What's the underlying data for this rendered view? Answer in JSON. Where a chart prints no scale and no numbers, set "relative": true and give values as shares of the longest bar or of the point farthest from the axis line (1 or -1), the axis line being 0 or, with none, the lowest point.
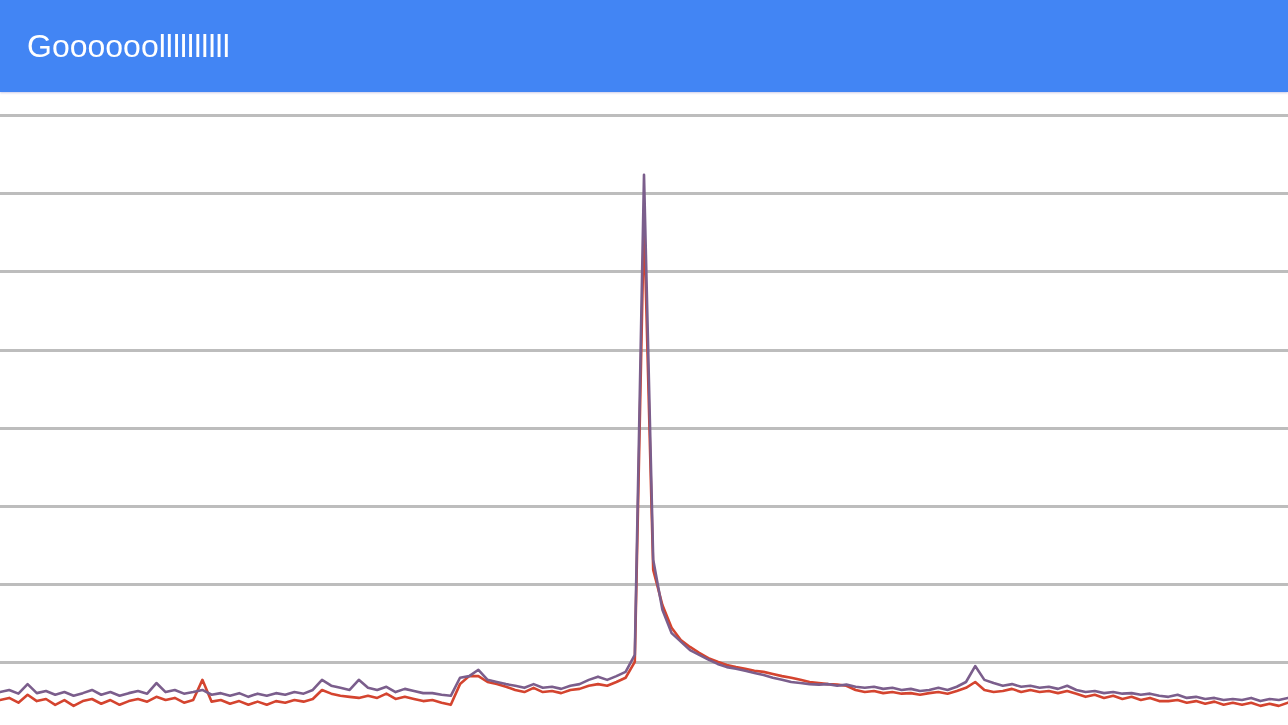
{
  "chart_data": {
    "type": "line",
    "title": "Goooooollllllllll",
    "relative": true,
    "grid": "y",
    "marker": "none",
    "line_style": "solid",
    "categories": [
      null,
      null,
      null,
      null,
      null,
      null,
      null,
      null,
      null,
      null,
      null,
      null,
      null,
      null,
      null,
      null,
      null,
      null,
      null,
      null,
      null,
      null,
      null,
      null,
      null,
      null,
      null,
      null,
      null,
      null,
      null,
      null,
      null,
      null,
      null,
      null,
      null,
      null,
      null,
      null,
      null,
      null,
      null,
      null,
      null,
      null,
      null,
      null,
      null,
      null,
      null,
      null,
      null,
      null,
      null,
      null,
      null,
      null,
      null,
      null,
      null,
      null,
      null,
      null,
      null,
      null,
      null,
      null,
      null,
      null,
      null,
      null,
      null,
      null,
      null,
      null,
      null,
      null,
      null,
      null,
      null,
      null,
      null,
      null,
      null,
      null,
      null,
      null,
      null,
      null,
      null,
      null,
      null,
      null,
      null,
      null,
      null,
      null,
      null,
      null,
      null,
      null,
      null,
      null,
      null,
      null,
      null,
      null,
      null,
      null,
      null,
      null,
      null,
      null,
      null,
      null,
      null,
      null,
      null,
      null,
      null,
      null,
      null,
      null,
      null,
      null,
      null,
      null,
      null,
      null,
      null,
      null,
      null,
      null,
      null,
      null,
      null,
      null,
      null,
      null,
      null
    ],
    "series": [
      {
        "color": "#d4442f",
        "values": [
          0.011,
          0.015,
          0.006,
          0.021,
          0.009,
          0.013,
          0.002,
          0.011,
          0,
          0.009,
          0.013,
          0.004,
          0.011,
          0.002,
          0.009,
          0.013,
          0.008,
          0.017,
          0.011,
          0.015,
          0.006,
          0.011,
          0.049,
          0.008,
          0.011,
          0.004,
          0.009,
          0.002,
          0.008,
          0.002,
          0.009,
          0.006,
          0.011,
          0.008,
          0.013,
          0.03,
          0.023,
          0.019,
          0.017,
          0.015,
          0.019,
          0.015,
          0.023,
          0.013,
          0.017,
          0.013,
          0.009,
          0.011,
          0.006,
          0.002,
          0.041,
          0.056,
          0.056,
          0.045,
          0.041,
          0.036,
          0.03,
          0.026,
          0.034,
          0.026,
          0.028,
          0.024,
          0.03,
          0.032,
          0.038,
          0.041,
          0.038,
          0.045,
          0.053,
          0.083,
          0.917,
          0.256,
          0.19,
          0.147,
          0.124,
          0.111,
          0.1,
          0.09,
          0.083,
          0.077,
          0.073,
          0.07,
          0.066,
          0.064,
          0.06,
          0.056,
          0.053,
          0.049,
          0.045,
          0.043,
          0.041,
          0.04,
          0.038,
          0.03,
          0.026,
          0.028,
          0.024,
          0.026,
          0.023,
          0.024,
          0.021,
          0.024,
          0.026,
          0.023,
          0.028,
          0.034,
          0.045,
          0.03,
          0.026,
          0.028,
          0.032,
          0.026,
          0.03,
          0.026,
          0.028,
          0.024,
          0.028,
          0.023,
          0.017,
          0.021,
          0.015,
          0.019,
          0.013,
          0.017,
          0.011,
          0.015,
          0.009,
          0.009,
          0.011,
          0.006,
          0.009,
          0.004,
          0.008,
          0.002,
          0.006,
          0.002,
          0.006,
          0,
          0.004,
          0,
          0.006
        ]
      },
      {
        "color": "#7b5e8c",
        "values": [
          0.026,
          0.03,
          0.023,
          0.041,
          0.024,
          0.028,
          0.021,
          0.026,
          0.019,
          0.024,
          0.03,
          0.021,
          0.026,
          0.019,
          0.024,
          0.028,
          0.023,
          0.043,
          0.026,
          0.03,
          0.023,
          0.026,
          0.03,
          0.021,
          0.024,
          0.019,
          0.024,
          0.017,
          0.023,
          0.019,
          0.024,
          0.021,
          0.026,
          0.023,
          0.03,
          0.049,
          0.038,
          0.034,
          0.03,
          0.049,
          0.034,
          0.03,
          0.036,
          0.026,
          0.032,
          0.028,
          0.024,
          0.024,
          0.021,
          0.019,
          0.053,
          0.056,
          0.068,
          0.049,
          0.045,
          0.041,
          0.038,
          0.034,
          0.041,
          0.034,
          0.036,
          0.032,
          0.038,
          0.041,
          0.049,
          0.055,
          0.049,
          0.056,
          0.064,
          0.096,
          1,
          0.275,
          0.181,
          0.137,
          0.121,
          0.105,
          0.096,
          0.087,
          0.079,
          0.073,
          0.07,
          0.066,
          0.062,
          0.058,
          0.053,
          0.049,
          0.045,
          0.043,
          0.041,
          0.04,
          0.041,
          0.038,
          0.04,
          0.036,
          0.034,
          0.036,
          0.032,
          0.034,
          0.03,
          0.032,
          0.028,
          0.03,
          0.034,
          0.03,
          0.036,
          0.045,
          0.075,
          0.049,
          0.043,
          0.038,
          0.041,
          0.036,
          0.038,
          0.034,
          0.036,
          0.032,
          0.038,
          0.03,
          0.026,
          0.028,
          0.024,
          0.026,
          0.023,
          0.024,
          0.021,
          0.023,
          0.019,
          0.017,
          0.021,
          0.015,
          0.017,
          0.013,
          0.015,
          0.011,
          0.013,
          0.011,
          0.015,
          0.009,
          0.013,
          0.011,
          0.015
        ]
      }
    ]
  }
}
